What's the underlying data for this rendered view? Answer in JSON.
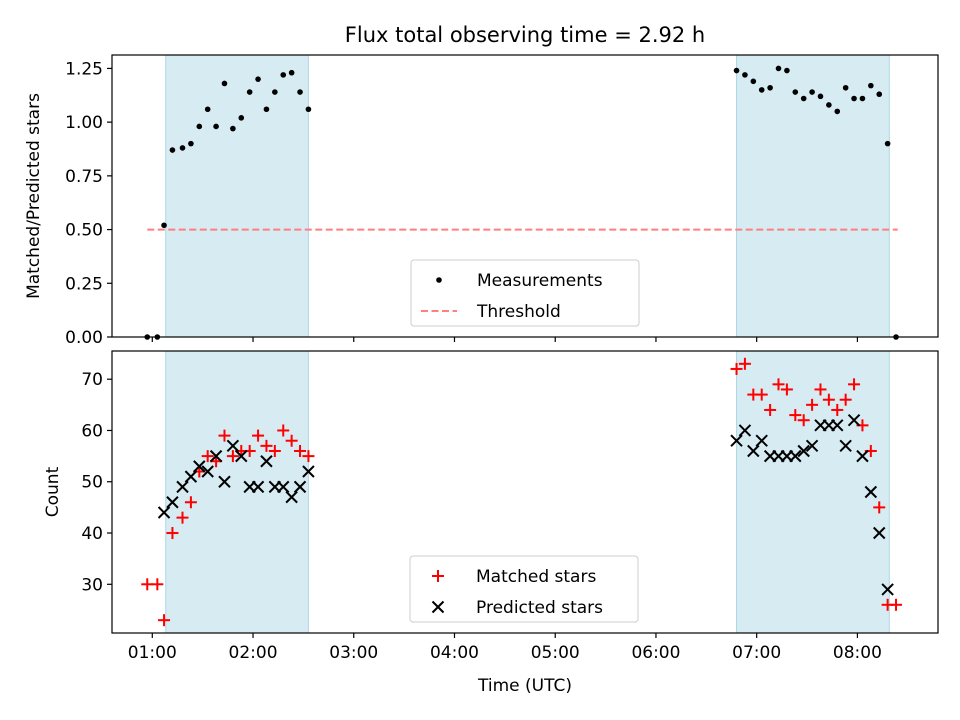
{
  "chart_data": [
    {
      "type": "scatter",
      "title": "Flux total observing time = 2.92 h",
      "ylabel": "Matched/Predicted stars",
      "xlim": [
        "00:36",
        "08:48"
      ],
      "ylim": [
        0,
        1.3125
      ],
      "yticks": [
        0.0,
        0.25,
        0.5,
        0.75,
        1.0,
        1.25
      ],
      "ytick_labels": [
        "0.00",
        "0.25",
        "0.50",
        "0.75",
        "1.00",
        "1.25"
      ],
      "shaded_intervals": [
        [
          "01:08",
          "02:33"
        ],
        [
          "06:48",
          "08:19"
        ]
      ],
      "threshold": {
        "value": 0.5,
        "x_range": [
          "00:57",
          "08:24"
        ],
        "color": "#ff7f7f"
      },
      "legend": {
        "placement": "lower-center",
        "entries": [
          "Measurements",
          "Threshold"
        ]
      },
      "series": [
        {
          "name": "Measurements",
          "marker": "dot",
          "color": "#000000",
          "points": [
            [
              "00:57",
              0.0
            ],
            [
              "01:03",
              0.0
            ],
            [
              "01:07",
              0.52
            ],
            [
              "01:12",
              0.87
            ],
            [
              "01:18",
              0.88
            ],
            [
              "01:23",
              0.9
            ],
            [
              "01:28",
              0.98
            ],
            [
              "01:33",
              1.06
            ],
            [
              "01:38",
              0.98
            ],
            [
              "01:43",
              1.18
            ],
            [
              "01:48",
              0.97
            ],
            [
              "01:53",
              1.02
            ],
            [
              "01:58",
              1.14
            ],
            [
              "02:03",
              1.2
            ],
            [
              "02:08",
              1.06
            ],
            [
              "02:13",
              1.14
            ],
            [
              "02:18",
              1.22
            ],
            [
              "02:23",
              1.23
            ],
            [
              "02:28",
              1.14
            ],
            [
              "02:33",
              1.06
            ],
            [
              "06:48",
              1.24
            ],
            [
              "06:53",
              1.22
            ],
            [
              "06:58",
              1.19
            ],
            [
              "07:03",
              1.15
            ],
            [
              "07:08",
              1.16
            ],
            [
              "07:13",
              1.25
            ],
            [
              "07:18",
              1.24
            ],
            [
              "07:23",
              1.14
            ],
            [
              "07:28",
              1.11
            ],
            [
              "07:33",
              1.14
            ],
            [
              "07:38",
              1.12
            ],
            [
              "07:43",
              1.08
            ],
            [
              "07:48",
              1.05
            ],
            [
              "07:53",
              1.16
            ],
            [
              "07:58",
              1.11
            ],
            [
              "08:03",
              1.11
            ],
            [
              "08:08",
              1.17
            ],
            [
              "08:13",
              1.13
            ],
            [
              "08:18",
              0.9
            ],
            [
              "08:23",
              0.0
            ]
          ]
        }
      ]
    },
    {
      "type": "scatter",
      "xlabel": "Time (UTC)",
      "ylabel": "Count",
      "xlim": [
        "00:36",
        "08:48"
      ],
      "ylim": [
        20.5,
        75.5
      ],
      "yticks": [
        30,
        40,
        50,
        60,
        70
      ],
      "ytick_labels": [
        "30",
        "40",
        "50",
        "60",
        "70"
      ],
      "xticks": [
        "01:00",
        "02:00",
        "03:00",
        "04:00",
        "05:00",
        "06:00",
        "07:00",
        "08:00"
      ],
      "xtick_labels": [
        "01:00",
        "02:00",
        "03:00",
        "04:00",
        "05:00",
        "06:00",
        "07:00",
        "08:00"
      ],
      "shaded_intervals": [
        [
          "01:08",
          "02:33"
        ],
        [
          "06:48",
          "08:19"
        ]
      ],
      "legend": {
        "placement": "lower-center",
        "entries": [
          "Matched stars",
          "Predicted stars"
        ]
      },
      "series": [
        {
          "name": "Matched stars",
          "marker": "plus",
          "color": "#ff0000",
          "points": [
            [
              "00:57",
              30
            ],
            [
              "01:03",
              30
            ],
            [
              "01:07",
              23
            ],
            [
              "01:12",
              40
            ],
            [
              "01:18",
              43
            ],
            [
              "01:23",
              46
            ],
            [
              "01:28",
              52
            ],
            [
              "01:33",
              55
            ],
            [
              "01:38",
              54
            ],
            [
              "01:43",
              59
            ],
            [
              "01:48",
              55
            ],
            [
              "01:53",
              56
            ],
            [
              "01:58",
              56
            ],
            [
              "02:03",
              59
            ],
            [
              "02:08",
              57
            ],
            [
              "02:13",
              56
            ],
            [
              "02:18",
              60
            ],
            [
              "02:23",
              58
            ],
            [
              "02:28",
              56
            ],
            [
              "02:33",
              55
            ],
            [
              "06:48",
              72
            ],
            [
              "06:53",
              73
            ],
            [
              "06:58",
              67
            ],
            [
              "07:03",
              67
            ],
            [
              "07:08",
              64
            ],
            [
              "07:13",
              69
            ],
            [
              "07:18",
              68
            ],
            [
              "07:23",
              63
            ],
            [
              "07:28",
              62
            ],
            [
              "07:33",
              65
            ],
            [
              "07:38",
              68
            ],
            [
              "07:43",
              66
            ],
            [
              "07:48",
              64
            ],
            [
              "07:53",
              66
            ],
            [
              "07:58",
              69
            ],
            [
              "08:03",
              61
            ],
            [
              "08:08",
              56
            ],
            [
              "08:13",
              45
            ],
            [
              "08:18",
              26
            ],
            [
              "08:23",
              26
            ]
          ]
        },
        {
          "name": "Predicted stars",
          "marker": "x",
          "color": "#000000",
          "points": [
            [
              "01:07",
              44
            ],
            [
              "01:12",
              46
            ],
            [
              "01:18",
              49
            ],
            [
              "01:23",
              51
            ],
            [
              "01:28",
              53
            ],
            [
              "01:33",
              52
            ],
            [
              "01:38",
              55
            ],
            [
              "01:43",
              50
            ],
            [
              "01:48",
              57
            ],
            [
              "01:53",
              55
            ],
            [
              "01:58",
              49
            ],
            [
              "02:03",
              49
            ],
            [
              "02:08",
              54
            ],
            [
              "02:13",
              49
            ],
            [
              "02:18",
              49
            ],
            [
              "02:23",
              47
            ],
            [
              "02:28",
              49
            ],
            [
              "02:33",
              52
            ],
            [
              "06:48",
              58
            ],
            [
              "06:53",
              60
            ],
            [
              "06:58",
              56
            ],
            [
              "07:03",
              58
            ],
            [
              "07:08",
              55
            ],
            [
              "07:13",
              55
            ],
            [
              "07:18",
              55
            ],
            [
              "07:23",
              55
            ],
            [
              "07:28",
              56
            ],
            [
              "07:33",
              57
            ],
            [
              "07:38",
              61
            ],
            [
              "07:43",
              61
            ],
            [
              "07:48",
              61
            ],
            [
              "07:53",
              57
            ],
            [
              "07:58",
              62
            ],
            [
              "08:03",
              55
            ],
            [
              "08:08",
              48
            ],
            [
              "08:13",
              40
            ],
            [
              "08:18",
              29
            ]
          ]
        }
      ]
    }
  ]
}
